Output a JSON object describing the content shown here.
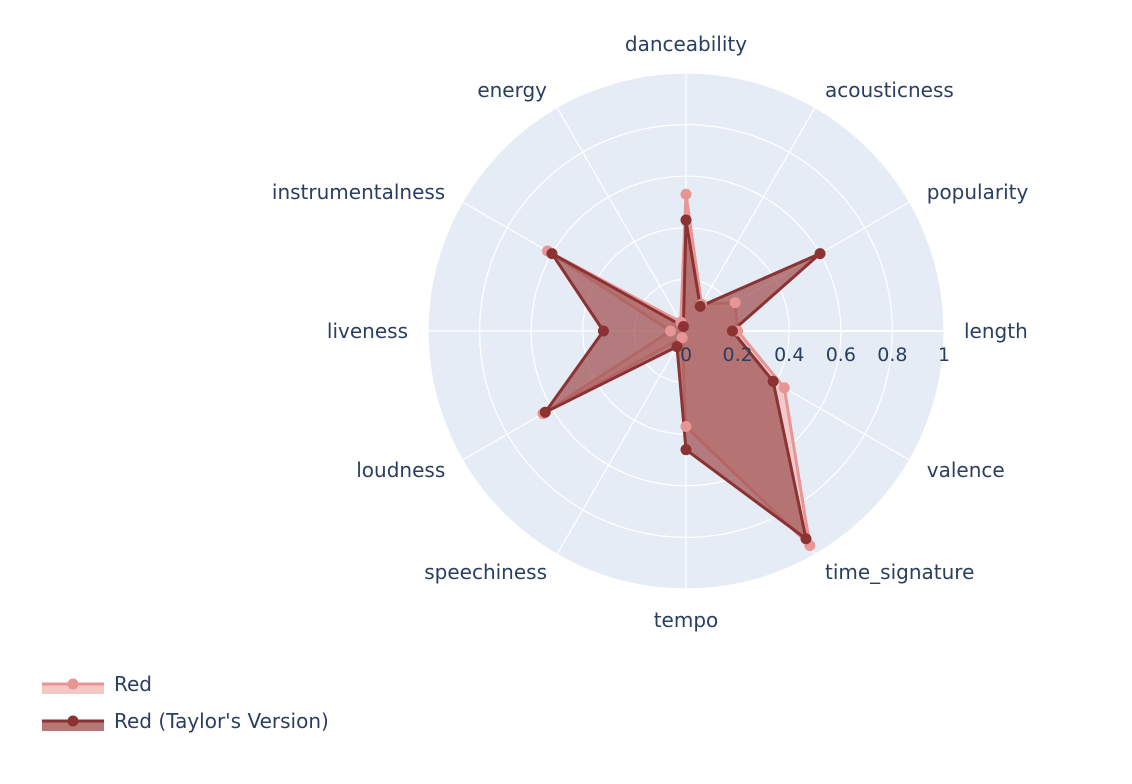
{
  "chart_data": {
    "type": "radar",
    "title": "",
    "axes": [
      "danceability",
      "acousticness",
      "popularity",
      "length",
      "valence",
      "time_signature",
      "tempo",
      "speechiness",
      "loudness",
      "liveness",
      "instrumentalness",
      "energy"
    ],
    "radial_range": [
      0,
      1
    ],
    "radial_ticks": [
      "0",
      "0.2",
      "0.4",
      "0.6",
      "0.8",
      "1"
    ],
    "grid": true,
    "legend_position": "bottom-left",
    "series": [
      {
        "name": "Red",
        "color": "#e89595",
        "fill": "#f3c0c0",
        "values": [
          0.53,
          0.12,
          0.22,
          0.2,
          0.44,
          0.96,
          0.37,
          0.03,
          0.64,
          0.06,
          0.62,
          0.04
        ]
      },
      {
        "name": "Red (Taylor's Version)",
        "color": "#8b3232",
        "fill": "#a35656",
        "values": [
          0.43,
          0.11,
          0.6,
          0.18,
          0.39,
          0.93,
          0.46,
          0.07,
          0.63,
          0.32,
          0.6,
          0.02
        ]
      }
    ]
  }
}
